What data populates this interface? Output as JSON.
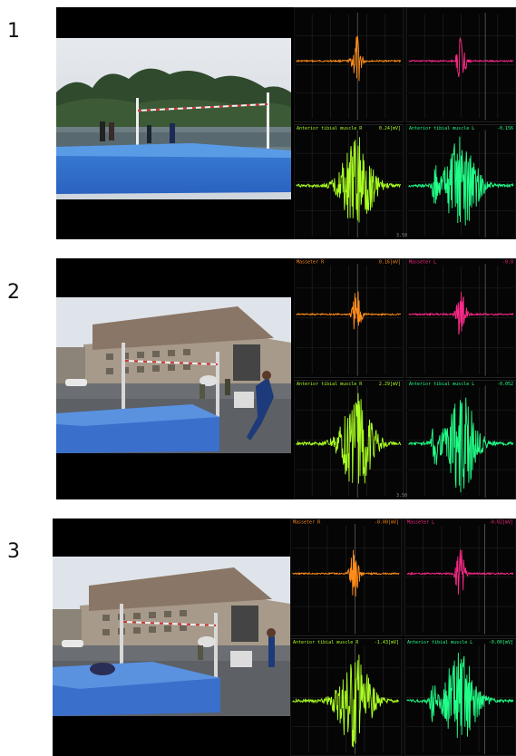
{
  "panels": [
    {
      "number": "1",
      "scene": "indoor-style",
      "channels": [
        {
          "label": "",
          "value": "",
          "color": "#ff8c1a"
        },
        {
          "label": "",
          "value": "",
          "color": "#ff2a8a"
        },
        {
          "label": "Anterior tibial muscle R",
          "value": "0.24[mV]",
          "color": "#aaff22"
        },
        {
          "label": "Anterior tibial muscle L",
          "value": "-0.156",
          "color": "#22ff88"
        }
      ],
      "time_label": "3.50"
    },
    {
      "number": "2",
      "scene": "building",
      "channels": [
        {
          "label": "Masseter R",
          "value": "0.16[mV]",
          "color": "#ff8c1a"
        },
        {
          "label": "Masseter L",
          "value": "-0.0",
          "color": "#ff2a8a"
        },
        {
          "label": "Anterior tibial muscle R",
          "value": "2.29[mV]",
          "color": "#aaff22"
        },
        {
          "label": "Anterior tibial muscle L",
          "value": "-0.052",
          "color": "#22ff88"
        }
      ],
      "time_label": "3.50"
    },
    {
      "number": "3",
      "scene": "building",
      "channels": [
        {
          "label": "Masseter R",
          "value": "-0.00[mV]",
          "color": "#ff8c1a"
        },
        {
          "label": "Masseter L",
          "value": "-0.02[mV]",
          "color": "#ff2a8a"
        },
        {
          "label": "Anterior tibial muscle R",
          "value": "-1.43[mV]",
          "color": "#aaff22"
        },
        {
          "label": "Anterior tibial muscle L",
          "value": "-0.00[mV]",
          "color": "#22ff88"
        }
      ],
      "time_label": ""
    }
  ]
}
